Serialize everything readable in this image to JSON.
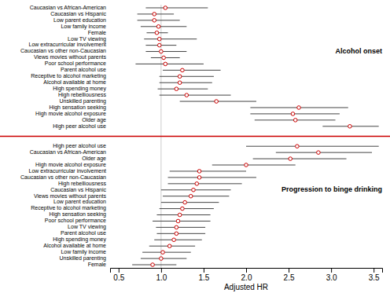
{
  "chart_data": {
    "type": "forest",
    "x_label": "Adjusted HR",
    "xlim": [
      0.4,
      3.6
    ],
    "xticks": [
      0.5,
      {
        "value": 1,
        "label": "1.0"
      },
      1.5,
      {
        "value": 2,
        "label": "2.0"
      },
      2.5,
      {
        "value": 3,
        "label": "3.0"
      },
      3.5
    ],
    "reference_x": 1,
    "color": "#cc0000",
    "grid": false,
    "panels": [
      {
        "title": "Alcohol onset",
        "categories": [
          "Caucasian vs African-American",
          "Caucasian vs Hispanic",
          "Low parent education",
          "Low family income",
          "Female",
          "Low TV viewing",
          "Low extracurricular involvement",
          "Caucasian vs other non-Caucasian",
          "Views movies without parents",
          "Poor school performance",
          "Parent alcohol use",
          "Receptive to alcohol marketing",
          "Alcohol available at home",
          "High spending money",
          "High rebelliousness",
          "Unskilled parenting",
          "High sensation seeking",
          "High movie alcohol exposure",
          "Older age",
          "High peer alcohol use"
        ],
        "values": [
          1.05,
          0.92,
          0.92,
          0.97,
          0.95,
          0.98,
          0.98,
          1.0,
          1.03,
          1.05,
          1.25,
          1.22,
          1.22,
          1.18,
          1.3,
          1.65,
          2.62,
          2.55,
          2.58,
          3.22
        ],
        "ci_low": [
          0.82,
          0.72,
          0.72,
          0.76,
          0.83,
          0.8,
          0.82,
          0.82,
          0.88,
          0.7,
          1.02,
          0.98,
          0.98,
          0.96,
          0.98,
          1.22,
          2.05,
          2.05,
          2.1,
          2.9
        ],
        "ci_high": [
          1.55,
          1.15,
          1.22,
          1.3,
          1.08,
          1.42,
          1.18,
          1.3,
          1.22,
          1.5,
          1.7,
          1.62,
          1.6,
          1.55,
          1.82,
          2.12,
          3.2,
          3.1,
          3.05,
          3.56
        ]
      },
      {
        "title": "Progression to binge drinking",
        "categories": [
          "High peer alcohol use",
          "Caucasian vs African-American",
          "Older age",
          "High movie alcohol exposure",
          "Low extracurricular involvement",
          "Caucasian vs other non-Caucasian",
          "High rebelliousness",
          "Caucasian vs Hispanic",
          "Views movies without parents",
          "Low parent education",
          "Receptive to alcohol marketing",
          "High sensation seeking",
          "Poor school performance",
          "Low TV viewing",
          "Parent alcohol use",
          "High spending money",
          "Alcohol available at home",
          "Low family income",
          "Unskilled parenting",
          "Female"
        ],
        "values": [
          2.6,
          2.85,
          2.52,
          2.0,
          1.45,
          1.45,
          1.42,
          1.38,
          1.35,
          1.28,
          1.25,
          1.22,
          1.2,
          1.18,
          1.18,
          1.15,
          1.1,
          1.02,
          1.0,
          0.9
        ],
        "ci_low": [
          2.0,
          2.35,
          2.08,
          1.6,
          1.1,
          1.08,
          1.08,
          1.0,
          1.02,
          1.0,
          0.98,
          0.95,
          0.9,
          0.94,
          0.95,
          0.92,
          0.86,
          0.78,
          0.76,
          0.66
        ],
        "ci_high": [
          3.56,
          3.48,
          3.18,
          2.58,
          2.0,
          2.12,
          1.95,
          1.82,
          1.8,
          1.68,
          1.62,
          1.58,
          1.58,
          1.52,
          1.52,
          1.48,
          1.4,
          1.35,
          1.3,
          1.18
        ]
      }
    ]
  }
}
